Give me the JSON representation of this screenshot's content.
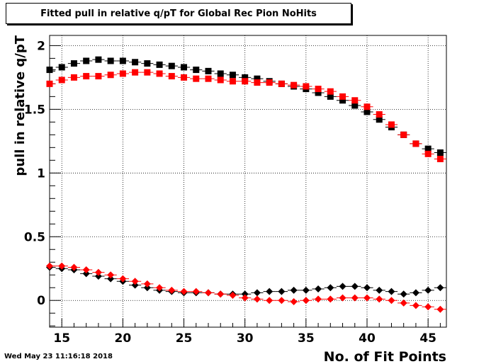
{
  "header": {
    "title": "Fitted pull in relative q/pT for Global Rec Pion NoHits",
    "timestamp": "Wed May 23 11:16:18 2018"
  },
  "chart_data": {
    "type": "scatter",
    "title": "Fitted pull in relative q/pT for Global Rec Pion NoHits",
    "xlabel": "No. of Fit Points",
    "ylabel": "pull in relative q/pT",
    "xlim": [
      14,
      46.5
    ],
    "ylim": [
      -0.21,
      2.08
    ],
    "grid": true,
    "x_ticks": [
      15,
      20,
      25,
      30,
      35,
      40,
      45
    ],
    "x_tick_labels": [
      "15",
      "20",
      "25",
      "30",
      "35",
      "40",
      "45"
    ],
    "y_ticks": [
      0,
      0.5,
      1,
      1.5,
      2
    ],
    "y_tick_labels": [
      "0",
      "0.5",
      "1",
      "1.5",
      "2"
    ],
    "x": [
      14,
      15,
      16,
      17,
      18,
      19,
      20,
      21,
      22,
      23,
      24,
      25,
      26,
      27,
      28,
      29,
      30,
      31,
      32,
      33,
      34,
      35,
      36,
      37,
      38,
      39,
      40,
      41,
      42,
      43,
      44,
      45,
      46
    ],
    "series": [
      {
        "marker": "square",
        "color": "#000000",
        "values": [
          1.81,
          1.83,
          1.86,
          1.88,
          1.89,
          1.88,
          1.88,
          1.87,
          1.86,
          1.85,
          1.84,
          1.83,
          1.81,
          1.8,
          1.78,
          1.77,
          1.75,
          1.74,
          1.72,
          1.7,
          1.68,
          1.66,
          1.63,
          1.6,
          1.57,
          1.53,
          1.48,
          1.42,
          1.36,
          1.3,
          1.23,
          1.19,
          1.16
        ]
      },
      {
        "marker": "square",
        "color": "#ff0000",
        "values": [
          1.7,
          1.73,
          1.75,
          1.76,
          1.76,
          1.77,
          1.78,
          1.79,
          1.79,
          1.78,
          1.76,
          1.75,
          1.74,
          1.74,
          1.73,
          1.72,
          1.72,
          1.71,
          1.71,
          1.7,
          1.69,
          1.68,
          1.66,
          1.64,
          1.6,
          1.57,
          1.52,
          1.46,
          1.38,
          1.3,
          1.23,
          1.15,
          1.11
        ]
      },
      {
        "marker": "diamond",
        "color": "#000000",
        "values": [
          0.26,
          0.25,
          0.24,
          0.21,
          0.19,
          0.17,
          0.15,
          0.12,
          0.1,
          0.08,
          0.07,
          0.06,
          0.06,
          0.06,
          0.05,
          0.05,
          0.05,
          0.06,
          0.07,
          0.07,
          0.08,
          0.08,
          0.09,
          0.1,
          0.11,
          0.11,
          0.1,
          0.08,
          0.07,
          0.05,
          0.06,
          0.08,
          0.1
        ]
      },
      {
        "marker": "diamond",
        "color": "#ff0000",
        "values": [
          0.27,
          0.27,
          0.26,
          0.24,
          0.22,
          0.2,
          0.17,
          0.15,
          0.13,
          0.1,
          0.08,
          0.07,
          0.07,
          0.06,
          0.05,
          0.04,
          0.02,
          0.01,
          0.0,
          0.0,
          -0.01,
          0.0,
          0.01,
          0.01,
          0.02,
          0.02,
          0.02,
          0.01,
          0.0,
          -0.02,
          -0.04,
          -0.05,
          -0.07
        ]
      }
    ]
  }
}
